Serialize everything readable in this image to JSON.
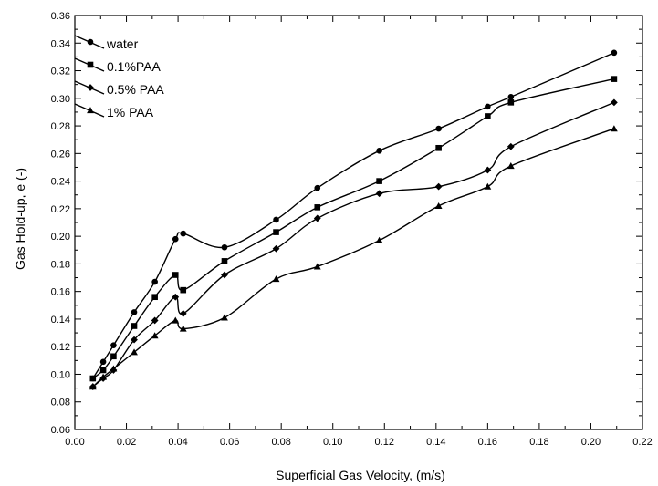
{
  "chart_data": {
    "type": "line",
    "xlabel": "Superficial Gas Velocity, (m/s)",
    "ylabel": "Gas Hold-up, e (-)",
    "xlim": [
      0.0,
      0.22
    ],
    "ylim": [
      0.06,
      0.36
    ],
    "x_ticks": [
      "0.00",
      "0.02",
      "0.04",
      "0.06",
      "0.08",
      "0.10",
      "0.12",
      "0.14",
      "0.16",
      "0.18",
      "0.20",
      "0.22"
    ],
    "y_ticks": [
      "0.06",
      "0.08",
      "0.10",
      "0.12",
      "0.14",
      "0.16",
      "0.18",
      "0.20",
      "0.22",
      "0.24",
      "0.26",
      "0.28",
      "0.30",
      "0.32",
      "0.34",
      "0.36"
    ],
    "grid": false,
    "legend_position": "top-left",
    "series": [
      {
        "name": "water",
        "marker": "circle",
        "x": [
          0.007,
          0.011,
          0.015,
          0.023,
          0.031,
          0.039,
          0.042,
          0.058,
          0.078,
          0.094,
          0.118,
          0.141,
          0.16,
          0.169,
          0.209
        ],
        "y": [
          0.097,
          0.109,
          0.121,
          0.145,
          0.167,
          0.198,
          0.202,
          0.192,
          0.212,
          0.235,
          0.262,
          0.278,
          0.294,
          0.301,
          0.333
        ]
      },
      {
        "name": "0.1%PAA",
        "marker": "square",
        "x": [
          0.007,
          0.011,
          0.015,
          0.023,
          0.031,
          0.039,
          0.042,
          0.058,
          0.078,
          0.094,
          0.118,
          0.141,
          0.16,
          0.169,
          0.209
        ],
        "y": [
          0.097,
          0.103,
          0.113,
          0.135,
          0.156,
          0.172,
          0.161,
          0.182,
          0.203,
          0.221,
          0.24,
          0.264,
          0.287,
          0.297,
          0.314
        ]
      },
      {
        "name": "0.5% PAA",
        "marker": "diamond",
        "x": [
          0.007,
          0.011,
          0.015,
          0.023,
          0.031,
          0.039,
          0.042,
          0.058,
          0.078,
          0.094,
          0.118,
          0.141,
          0.16,
          0.169,
          0.209
        ],
        "y": [
          0.091,
          0.097,
          0.103,
          0.125,
          0.139,
          0.156,
          0.144,
          0.172,
          0.191,
          0.213,
          0.231,
          0.236,
          0.248,
          0.265,
          0.297
        ]
      },
      {
        "name": "1% PAA",
        "marker": "triangle",
        "x": [
          0.007,
          0.011,
          0.015,
          0.023,
          0.031,
          0.039,
          0.042,
          0.058,
          0.078,
          0.094,
          0.118,
          0.141,
          0.16,
          0.169,
          0.209
        ],
        "y": [
          0.091,
          0.098,
          0.104,
          0.116,
          0.128,
          0.139,
          0.133,
          0.141,
          0.169,
          0.178,
          0.197,
          0.222,
          0.236,
          0.251,
          0.278
        ]
      }
    ]
  }
}
